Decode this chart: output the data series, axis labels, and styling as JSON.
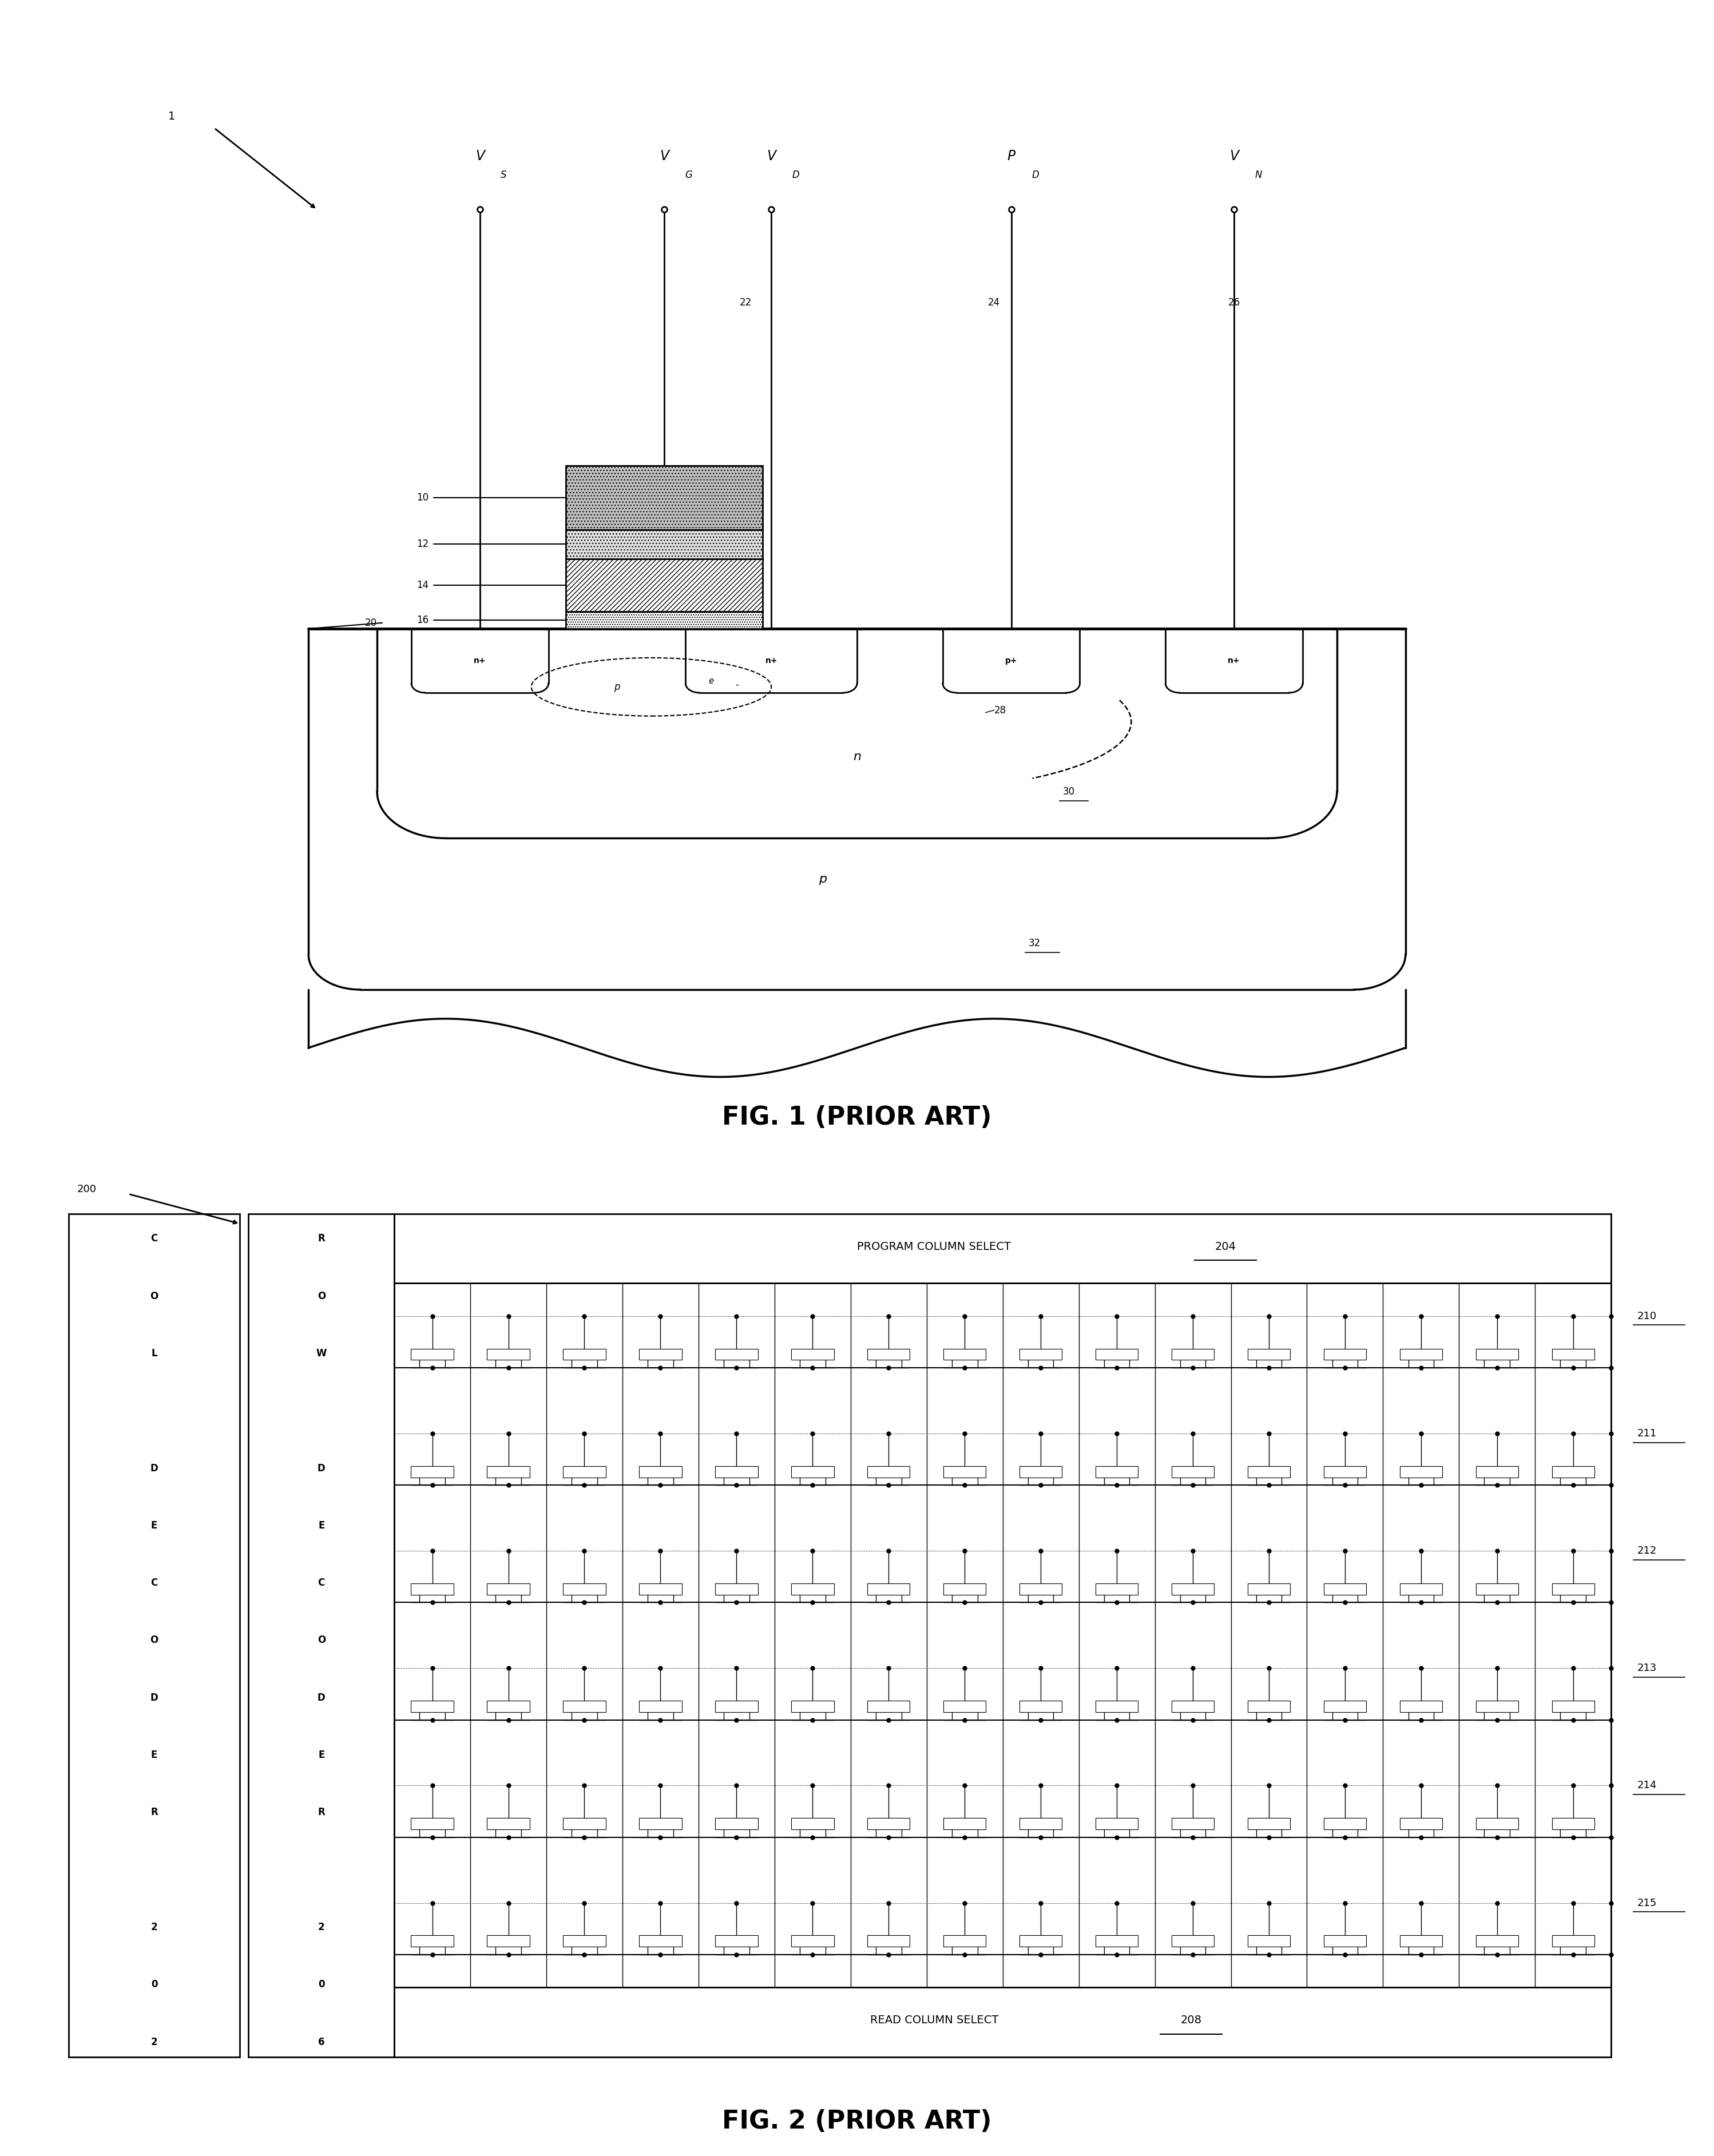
{
  "fig1_title": "FIG. 1 (PRIOR ART)",
  "fig2_title": "FIG. 2 (PRIOR ART)",
  "bg_color": "#ffffff",
  "fig2_rows": [
    "210",
    "211",
    "212",
    "213",
    "214",
    "215"
  ]
}
